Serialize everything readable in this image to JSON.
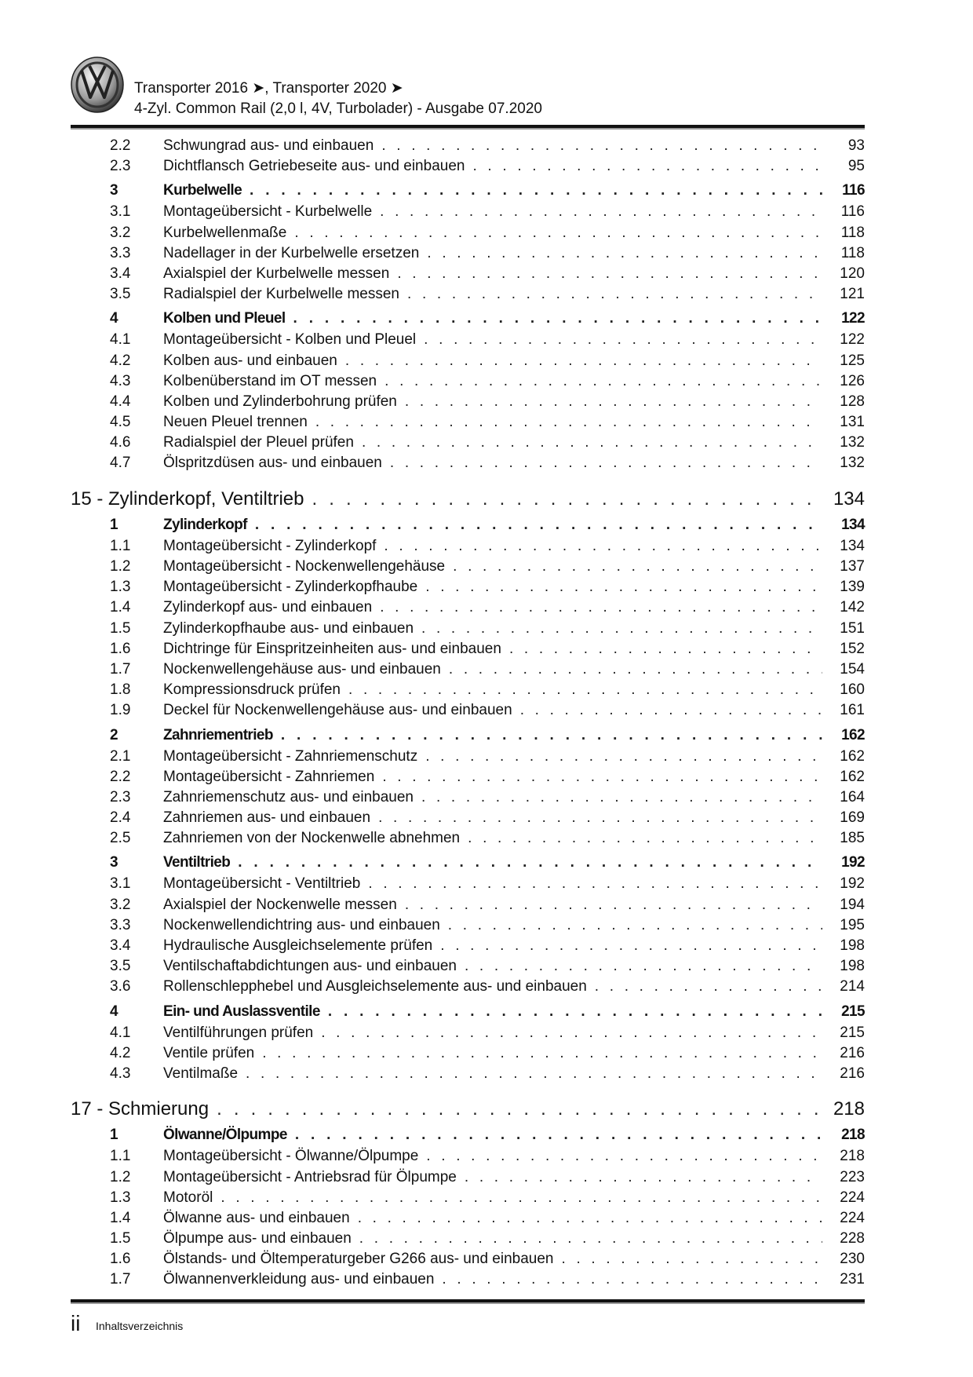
{
  "header": {
    "line1": "Transporter 2016 ➤, Transporter 2020 ➤",
    "line2": "4-Zyl. Common Rail (2,0 l, 4V, Turbolader) - Ausgabe 07.2020",
    "logo": "VW"
  },
  "footer": {
    "page": "ii",
    "section": "Inhaltsverzeichnis"
  },
  "entries": [
    {
      "type": "item",
      "num": "2.2",
      "title": "Schwungrad aus- und einbauen",
      "page": "93"
    },
    {
      "type": "item",
      "num": "2.3",
      "title": "Dichtflansch Getriebeseite aus- und einbauen",
      "page": "95"
    },
    {
      "type": "sec",
      "num": "3",
      "title": "Kurbelwelle",
      "page": "116"
    },
    {
      "type": "item",
      "num": "3.1",
      "title": "Montageübersicht - Kurbelwelle",
      "page": "116"
    },
    {
      "type": "item",
      "num": "3.2",
      "title": "Kurbelwellenmaße",
      "page": "118"
    },
    {
      "type": "item",
      "num": "3.3",
      "title": "Nadellager in der Kurbelwelle ersetzen",
      "page": "118"
    },
    {
      "type": "item",
      "num": "3.4",
      "title": "Axialspiel der Kurbelwelle messen",
      "page": "120"
    },
    {
      "type": "item",
      "num": "3.5",
      "title": "Radialspiel der Kurbelwelle messen",
      "page": "121"
    },
    {
      "type": "sec",
      "num": "4",
      "title": "Kolben und Pleuel",
      "page": "122"
    },
    {
      "type": "item",
      "num": "4.1",
      "title": "Montageübersicht - Kolben und Pleuel",
      "page": "122"
    },
    {
      "type": "item",
      "num": "4.2",
      "title": "Kolben aus- und einbauen",
      "page": "125"
    },
    {
      "type": "item",
      "num": "4.3",
      "title": "Kolbenüberstand im OT messen",
      "page": "126"
    },
    {
      "type": "item",
      "num": "4.4",
      "title": "Kolben und Zylinderbohrung prüfen",
      "page": "128"
    },
    {
      "type": "item",
      "num": "4.5",
      "title": "Neuen Pleuel trennen",
      "page": "131"
    },
    {
      "type": "item",
      "num": "4.6",
      "title": "Radialspiel der Pleuel prüfen",
      "page": "132"
    },
    {
      "type": "item",
      "num": "4.7",
      "title": "Ölspritzdüsen aus- und einbauen",
      "page": "132"
    },
    {
      "type": "chap",
      "num": "",
      "title": "15 - Zylinderkopf, Ventiltrieb",
      "page": "134"
    },
    {
      "type": "sec",
      "num": "1",
      "title": "Zylinderkopf",
      "page": "134"
    },
    {
      "type": "item",
      "num": "1.1",
      "title": "Montageübersicht - Zylinderkopf",
      "page": "134"
    },
    {
      "type": "item",
      "num": "1.2",
      "title": "Montageübersicht - Nockenwellengehäuse",
      "page": "137"
    },
    {
      "type": "item",
      "num": "1.3",
      "title": "Montageübersicht - Zylinderkopfhaube",
      "page": "139"
    },
    {
      "type": "item",
      "num": "1.4",
      "title": "Zylinderkopf aus- und einbauen",
      "page": "142"
    },
    {
      "type": "item",
      "num": "1.5",
      "title": "Zylinderkopfhaube aus- und einbauen",
      "page": "151"
    },
    {
      "type": "item",
      "num": "1.6",
      "title": "Dichtringe für Einspritzeinheiten aus- und einbauen",
      "page": "152"
    },
    {
      "type": "item",
      "num": "1.7",
      "title": "Nockenwellengehäuse aus- und einbauen",
      "page": "154"
    },
    {
      "type": "item",
      "num": "1.8",
      "title": "Kompressionsdruck prüfen",
      "page": "160"
    },
    {
      "type": "item",
      "num": "1.9",
      "title": "Deckel für Nockenwellengehäuse aus- und einbauen",
      "page": "161"
    },
    {
      "type": "sec",
      "num": "2",
      "title": "Zahnriementrieb",
      "page": "162"
    },
    {
      "type": "item",
      "num": "2.1",
      "title": "Montageübersicht - Zahnriemenschutz",
      "page": "162"
    },
    {
      "type": "item",
      "num": "2.2",
      "title": "Montageübersicht - Zahnriemen",
      "page": "162"
    },
    {
      "type": "item",
      "num": "2.3",
      "title": "Zahnriemenschutz aus- und einbauen",
      "page": "164"
    },
    {
      "type": "item",
      "num": "2.4",
      "title": "Zahnriemen aus- und einbauen",
      "page": "169"
    },
    {
      "type": "item",
      "num": "2.5",
      "title": "Zahnriemen von der Nockenwelle abnehmen",
      "page": "185"
    },
    {
      "type": "sec",
      "num": "3",
      "title": "Ventiltrieb",
      "page": "192"
    },
    {
      "type": "item",
      "num": "3.1",
      "title": "Montageübersicht - Ventiltrieb",
      "page": "192"
    },
    {
      "type": "item",
      "num": "3.2",
      "title": "Axialspiel der Nockenwelle messen",
      "page": "194"
    },
    {
      "type": "item",
      "num": "3.3",
      "title": "Nockenwellendichtring aus- und einbauen",
      "page": "195"
    },
    {
      "type": "item",
      "num": "3.4",
      "title": "Hydraulische Ausgleichselemente prüfen",
      "page": "198"
    },
    {
      "type": "item",
      "num": "3.5",
      "title": "Ventilschaftabdichtungen aus- und einbauen",
      "page": "198"
    },
    {
      "type": "item",
      "num": "3.6",
      "title": "Rollenschlepphebel und Ausgleichselemente aus- und einbauen",
      "page": "214"
    },
    {
      "type": "sec",
      "num": "4",
      "title": "Ein- und Auslassventile",
      "page": "215"
    },
    {
      "type": "item",
      "num": "4.1",
      "title": "Ventilführungen prüfen",
      "page": "215"
    },
    {
      "type": "item",
      "num": "4.2",
      "title": "Ventile prüfen",
      "page": "216"
    },
    {
      "type": "item",
      "num": "4.3",
      "title": "Ventilmaße",
      "page": "216"
    },
    {
      "type": "chap",
      "num": "",
      "title": "17 - Schmierung",
      "page": "218"
    },
    {
      "type": "sec",
      "num": "1",
      "title": "Ölwanne/Ölpumpe",
      "page": "218"
    },
    {
      "type": "item",
      "num": "1.1",
      "title": "Montageübersicht - Ölwanne/Ölpumpe",
      "page": "218"
    },
    {
      "type": "item",
      "num": "1.2",
      "title": "Montageübersicht - Antriebsrad für Ölpumpe",
      "page": "223"
    },
    {
      "type": "item",
      "num": "1.3",
      "title": "Motoröl",
      "page": "224"
    },
    {
      "type": "item",
      "num": "1.4",
      "title": "Ölwanne aus- und einbauen",
      "page": "224"
    },
    {
      "type": "item",
      "num": "1.5",
      "title": "Ölpumpe aus- und einbauen",
      "page": "228"
    },
    {
      "type": "item",
      "num": "1.6",
      "title": "Ölstands- und Öltemperaturgeber G266 aus- und einbauen",
      "page": "230"
    },
    {
      "type": "item",
      "num": "1.7",
      "title": "Ölwannenverkleidung aus- und einbauen",
      "page": "231"
    }
  ]
}
